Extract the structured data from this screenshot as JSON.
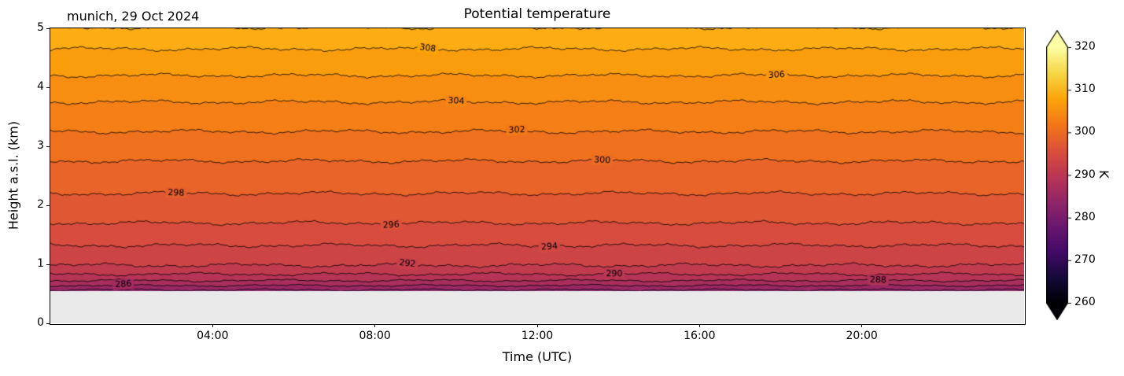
{
  "header": {
    "title": "Potential temperature",
    "annotation": "munich, 29 Oct 2024"
  },
  "chart_data": {
    "type": "heatmap",
    "subtype": "filled_contour_time_height",
    "title": "Potential temperature",
    "station_date_label": "munich, 29 Oct 2024",
    "xlabel": "Time (UTC)",
    "ylabel": "Height a.s.l. (km)",
    "xlim": [
      0,
      24
    ],
    "x_ticks": [
      {
        "hour": 4,
        "label": "04:00"
      },
      {
        "hour": 8,
        "label": "08:00"
      },
      {
        "hour": 12,
        "label": "12:00"
      },
      {
        "hour": 16,
        "label": "16:00"
      },
      {
        "hour": 20,
        "label": "20:00"
      }
    ],
    "ylim": [
      0,
      5
    ],
    "y_ticks": [
      {
        "km": 0,
        "label": "0"
      },
      {
        "km": 1,
        "label": "1"
      },
      {
        "km": 2,
        "label": "2"
      },
      {
        "km": 3,
        "label": "3"
      },
      {
        "km": 4,
        "label": "4"
      },
      {
        "km": 5,
        "label": "5"
      }
    ],
    "data_min_height_km": 0.55,
    "below_data_color": "#eaeaea",
    "contour_interval_K": 2,
    "contour_levels": [
      282,
      284,
      286,
      288,
      290,
      292,
      294,
      296,
      298,
      300,
      302,
      304,
      306,
      308,
      310
    ],
    "contour_labels": [
      {
        "level": 308,
        "t": 9.3
      },
      {
        "level": 306,
        "t": 17.9
      },
      {
        "level": 304,
        "t": 10.0
      },
      {
        "level": 302,
        "t": 11.5
      },
      {
        "level": 300,
        "t": 13.6
      },
      {
        "level": 298,
        "t": 3.1
      },
      {
        "level": 296,
        "t": 8.4
      },
      {
        "level": 294,
        "t": 12.3
      },
      {
        "level": 292,
        "t": 8.8
      },
      {
        "level": 290,
        "t": 13.9
      },
      {
        "level": 288,
        "t": 20.4
      },
      {
        "level": 286,
        "t": 1.8
      }
    ],
    "profile": {
      "height_km": [
        0.55,
        0.6,
        0.7,
        0.8,
        0.9,
        1.0,
        1.2,
        1.4,
        1.7,
        2.0,
        2.2,
        2.5,
        2.75,
        3.0,
        3.25,
        3.5,
        3.75,
        4.0,
        4.2,
        4.45,
        4.65,
        4.85,
        5.0
      ],
      "theta_K": [
        283.5,
        285.0,
        287.5,
        289.5,
        291.0,
        292.2,
        293.4,
        294.4,
        296.0,
        297.3,
        298.0,
        299.0,
        300.0,
        300.9,
        302.0,
        302.9,
        304.0,
        305.1,
        306.0,
        307.0,
        308.0,
        309.0,
        309.9
      ]
    },
    "colormap": "inferno",
    "colormap_stops": [
      [
        0.0,
        "#000004"
      ],
      [
        0.1,
        "#160b39"
      ],
      [
        0.2,
        "#420a68"
      ],
      [
        0.3,
        "#6a176e"
      ],
      [
        0.4,
        "#932667"
      ],
      [
        0.5,
        "#bc3754"
      ],
      [
        0.6,
        "#dd513a"
      ],
      [
        0.7,
        "#f37819"
      ],
      [
        0.8,
        "#fca50a"
      ],
      [
        0.9,
        "#f6d746"
      ],
      [
        1.0,
        "#fcffa4"
      ]
    ],
    "colorbar": {
      "label": "K",
      "min": 260,
      "max": 320,
      "ticks": [
        260,
        270,
        280,
        290,
        300,
        310,
        320
      ],
      "extend": "both"
    },
    "contour_line_color": "#000000"
  }
}
